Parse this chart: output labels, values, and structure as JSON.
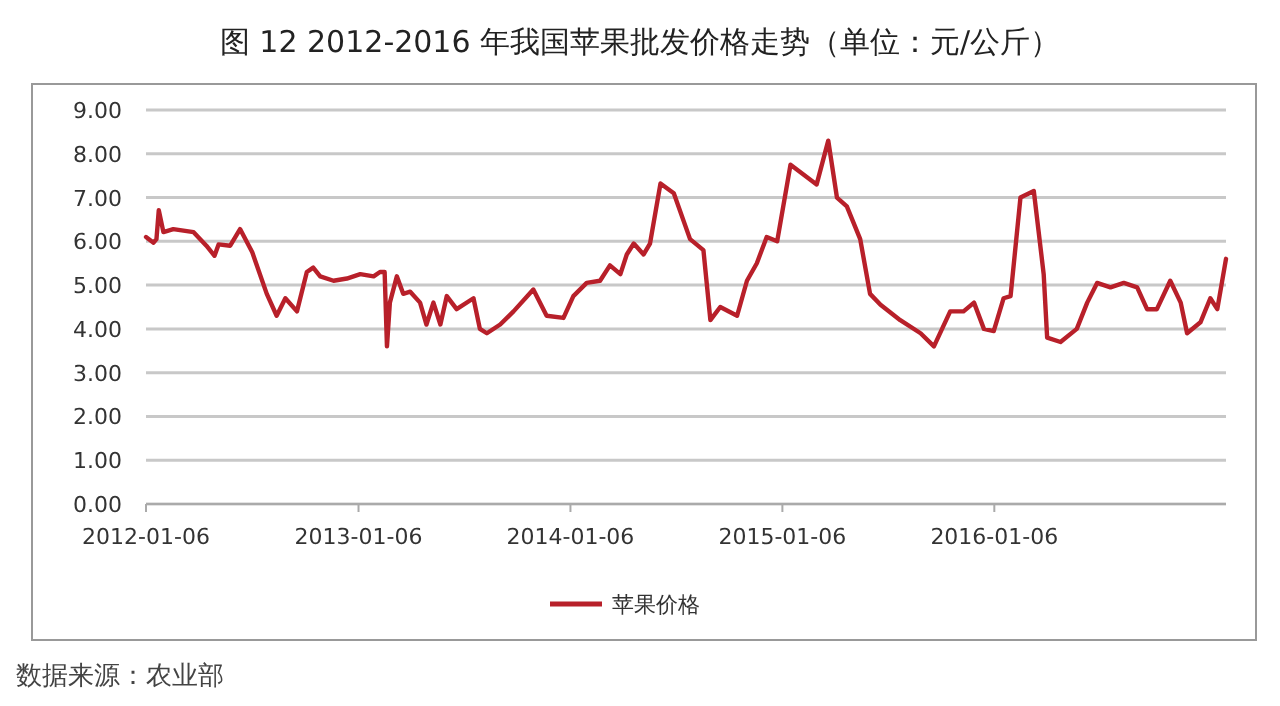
{
  "chart_data": {
    "type": "line",
    "title": "图 12   2012-2016 年我国苹果批发价格走势（单位：元/公斤）",
    "x": [
      "2012-01-06",
      "2012-01-19",
      "2012-01-24",
      "2012-01-28",
      "2012-02-05",
      "2012-02-22",
      "2012-03-28",
      "2012-04-19",
      "2012-05-03",
      "2012-05-10",
      "2012-05-30",
      "2012-06-16",
      "2012-07-07",
      "2012-08-01",
      "2012-08-18",
      "2012-09-02",
      "2012-09-22",
      "2012-10-09",
      "2012-10-20",
      "2012-11-01",
      "2012-11-24",
      "2012-12-17",
      "2013-01-09",
      "2013-02-01",
      "2013-02-12",
      "2013-02-20",
      "2013-02-24",
      "2013-03-01",
      "2013-03-13",
      "2013-03-24",
      "2013-04-05",
      "2013-04-22",
      "2013-05-03",
      "2013-05-15",
      "2013-05-27",
      "2013-06-07",
      "2013-06-24",
      "2013-07-23",
      "2013-08-03",
      "2013-08-15",
      "2013-09-07",
      "2013-09-30",
      "2013-11-03",
      "2013-11-26",
      "2013-12-25",
      "2014-01-11",
      "2014-02-03",
      "2014-02-26",
      "2014-03-15",
      "2014-04-02",
      "2014-04-13",
      "2014-04-25",
      "2014-05-12",
      "2014-05-23",
      "2014-06-10",
      "2014-07-03",
      "2014-07-31",
      "2014-08-23",
      "2014-09-04",
      "2014-09-21",
      "2014-10-20",
      "2014-11-06",
      "2014-11-23",
      "2014-12-10",
      "2014-12-28",
      "2015-01-20",
      "2015-03-06",
      "2015-03-26",
      "2015-04-10",
      "2015-04-27",
      "2015-05-20",
      "2015-06-06",
      "2015-06-24",
      "2015-07-28",
      "2015-09-01",
      "2015-09-24",
      "2015-10-22",
      "2015-11-14",
      "2015-12-02",
      "2015-12-19",
      "2016-01-05",
      "2016-01-22",
      "2016-02-03",
      "2016-02-20",
      "2016-03-14",
      "2016-03-31",
      "2016-04-06",
      "2016-04-29",
      "2016-05-27",
      "2016-06-14",
      "2016-07-01",
      "2016-07-24",
      "2016-08-16",
      "2016-09-08",
      "2016-09-25",
      "2016-10-12",
      "2016-11-04",
      "2016-11-22",
      "2016-12-03",
      "2016-12-26",
      "2017-01-12",
      "2017-01-24",
      "2017-02-08"
    ],
    "series": [
      {
        "name": "苹果价格",
        "color": "#b8202a",
        "values": [
          6.1,
          5.97,
          6.05,
          6.71,
          6.21,
          6.28,
          6.21,
          5.9,
          5.67,
          5.93,
          5.9,
          6.28,
          5.75,
          4.8,
          4.3,
          4.7,
          4.4,
          5.3,
          5.4,
          5.2,
          5.1,
          5.15,
          5.25,
          5.2,
          5.3,
          5.3,
          3.6,
          4.6,
          5.2,
          4.8,
          4.85,
          4.6,
          4.1,
          4.6,
          4.1,
          4.75,
          4.45,
          4.7,
          4.0,
          3.9,
          4.1,
          4.4,
          4.9,
          4.3,
          4.25,
          4.75,
          5.05,
          5.1,
          5.45,
          5.25,
          5.7,
          5.95,
          5.7,
          5.95,
          7.32,
          7.1,
          6.05,
          5.8,
          4.2,
          4.5,
          4.3,
          5.1,
          5.5,
          6.1,
          6.0,
          7.75,
          7.3,
          8.3,
          7.0,
          6.8,
          6.05,
          4.8,
          4.55,
          4.2,
          3.9,
          3.6,
          4.4,
          4.4,
          4.6,
          4.0,
          3.95,
          4.7,
          4.75,
          7.0,
          7.15,
          5.25,
          3.8,
          3.7,
          4.0,
          4.6,
          5.05,
          4.95,
          5.05,
          4.95,
          4.45,
          4.45,
          5.1,
          4.6,
          3.9,
          4.15,
          4.7,
          4.45,
          5.6
        ]
      }
    ],
    "xlim": [
      "2012-01-06",
      "2017-02-08"
    ],
    "xticks": [
      {
        "value": "2012-01-06",
        "label": "2012-01-06"
      },
      {
        "value": "2013-01-06",
        "label": "2013-01-06"
      },
      {
        "value": "2014-01-06",
        "label": "2014-01-06"
      },
      {
        "value": "2015-01-06",
        "label": "2015-01-06"
      },
      {
        "value": "2016-01-06",
        "label": "2016-01-06"
      }
    ],
    "ylim": [
      0,
      9
    ],
    "yticks": [
      {
        "value": 0,
        "label": "0.00"
      },
      {
        "value": 1,
        "label": "1.00"
      },
      {
        "value": 2,
        "label": "2.00"
      },
      {
        "value": 3,
        "label": "3.00"
      },
      {
        "value": 4,
        "label": "4.00"
      },
      {
        "value": 5,
        "label": "5.00"
      },
      {
        "value": 6,
        "label": "6.00"
      },
      {
        "value": 7,
        "label": "7.00"
      },
      {
        "value": 8,
        "label": "8.00"
      },
      {
        "value": 9,
        "label": "9.00"
      }
    ],
    "grid": "y",
    "legend": "bottom",
    "marker": "none",
    "line_style": "solid",
    "annotations": [
      "数据来源：农业部"
    ]
  }
}
